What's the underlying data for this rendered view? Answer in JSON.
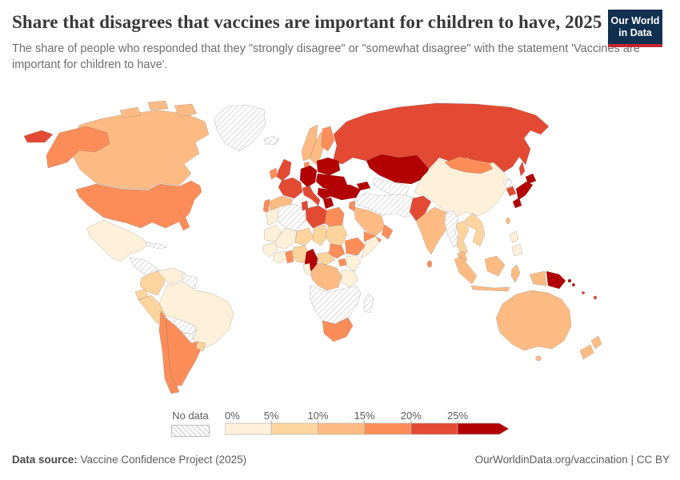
{
  "header": {
    "title": "Share that disagrees that vaccines are important for children to have, 2025",
    "subtitle": "The share of people who responded that they \"strongly disagree\" or \"somewhat disagree\" with the statement 'Vaccines are important for children to have'.",
    "logo": {
      "line1": "Our World",
      "line2": "in Data",
      "bg_color": "#12304f",
      "accent_color": "#c0272d"
    }
  },
  "legend": {
    "no_data_label": "No data",
    "ticks": [
      "0%",
      "5%",
      "10%",
      "15%",
      "20%",
      "25%"
    ]
  },
  "footer": {
    "source_label": "Data source:",
    "source_text": "Vaccine Confidence Project (2025)",
    "right_text": "OurWorldinData.org/vaccination | CC BY"
  },
  "chart_data": {
    "type": "choropleth",
    "title": "Share that disagrees that vaccines are important for children to have, 2025",
    "unit": "% of respondents who strongly or somewhat disagree",
    "legend_note": "No data shown as hatched pattern",
    "bin_labels": [
      "0-5%",
      "5-10%",
      "10-15%",
      "15-20%",
      "20-25%",
      "25%+",
      "No data"
    ],
    "bin_colors": {
      "0-5%": "#fef0d9",
      "5-10%": "#fdd49e",
      "10-15%": "#fdbb84",
      "15-20%": "#fc8d59",
      "20-25%": "#e34a33",
      "25%+": "#b30000",
      "No data": "hatch"
    },
    "countries": {
      "Mexico": "0-5%",
      "Venezuela": "0-5%",
      "Brazil": "0-5%",
      "Morocco": "0-5%",
      "Mauritania": "0-5%",
      "Mali": "0-5%",
      "Senegal": "0-5%",
      "Guinea": "0-5%",
      "Ivory Coast": "0-5%",
      "Gabon": "0-5%",
      "Kenya": "0-5%",
      "Somalia": "0-5%",
      "Tanzania": "0-5%",
      "China": "0-5%",
      "Philippines": "0-5%",
      "Colombia": "5-10%",
      "Ecuador": "5-10%",
      "Peru": "5-10%",
      "Uruguay": "5-10%",
      "Niger": "5-10%",
      "Chad": "5-10%",
      "Sudan": "5-10%",
      "Nigeria": "5-10%",
      "Central African Republic": "5-10%",
      "Bangladesh": "5-10%",
      "Thailand": "5-10%",
      "Vietnam": "5-10%",
      "Laos": "5-10%",
      "Cambodia": "5-10%",
      "Canada": "10-15%",
      "Norway": "10-15%",
      "Sweden": "10-15%",
      "Spain": "10-15%",
      "Saudi Arabia": "10-15%",
      "India": "10-15%",
      "Nepal": "10-15%",
      "DR Congo": "10-15%",
      "Malaysia": "10-15%",
      "Indonesia": "10-15%",
      "Taiwan": "10-15%",
      "Australia": "10-15%",
      "New Zealand": "10-15%",
      "United States": "15-20%",
      "Ireland": "15-20%",
      "Portugal": "15-20%",
      "Finland": "15-20%",
      "Denmark": "15-20%",
      "Mongolia": "15-20%",
      "Egypt": "15-20%",
      "Ethiopia": "15-20%",
      "South Sudan": "15-20%",
      "Uganda": "15-20%",
      "Ghana": "15-20%",
      "Yemen": "15-20%",
      "Oman": "15-20%",
      "Jordan": "15-20%",
      "South Africa": "15-20%",
      "Sri Lanka": "15-20%",
      "Chile": "15-20%",
      "Argentina": "15-20%",
      "United Kingdom": "20-25%",
      "France": "20-25%",
      "Italy": "20-25%",
      "Russia": "20-25%",
      "Tunisia": "20-25%",
      "Libya": "20-25%",
      "Pakistan": "20-25%",
      "South Korea": "20-25%",
      "Fiji": "20-25%",
      "Vanuatu": "20-25%",
      "Germany": "25%+",
      "Poland": "25%+",
      "Belarus": "25%+",
      "Czechia": "25%+",
      "Austria": "25%+",
      "Hungary": "25%+",
      "Slovakia": "25%+",
      "Ukraine": "25%+",
      "Romania": "25%+",
      "Serbia": "25%+",
      "Greece": "25%+",
      "Turkey": "25%+",
      "Kazakhstan": "25%+",
      "Georgia": "25%+",
      "Armenia": "25%+",
      "Azerbaijan": "25%+",
      "Cameroon": "25%+",
      "Japan": "25%+",
      "Papua New Guinea": "25%+",
      "Solomon Islands": "25%+",
      "Greenland": "No data",
      "Iceland": "No data",
      "Guatemala": "No data",
      "Honduras": "No data",
      "Nicaragua": "No data",
      "Cuba": "No data",
      "Guyana": "No data",
      "Suriname": "No data",
      "Bolivia": "No data",
      "Paraguay": "No data",
      "Algeria": "No data",
      "Iran": "No data",
      "Iraq": "No data",
      "Syria": "No data",
      "Afghanistan": "No data",
      "Uzbekistan": "No data",
      "Turkmenistan": "No data",
      "Myanmar": "No data",
      "North Korea": "No data",
      "Angola": "No data",
      "Zambia": "No data",
      "Zimbabwe": "No data",
      "Mozambique": "No data",
      "Namibia": "No data",
      "Botswana": "No data",
      "Madagascar": "No data"
    }
  }
}
